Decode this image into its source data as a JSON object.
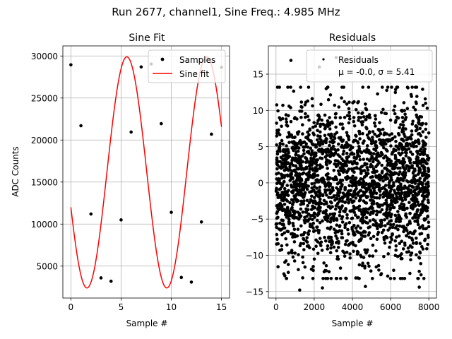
{
  "suptitle": "Run 2677, channel1, Sine Freq.: 4.985 MHz",
  "colors": {
    "sine": "#ff0000",
    "points": "#000000",
    "grid": "#b0b0b0"
  },
  "chart_data": [
    {
      "type": "line",
      "title": "Sine Fit",
      "xlabel": "Sample #",
      "ylabel": "ADC Counts",
      "xlim": [
        -0.8,
        15.8
      ],
      "ylim": [
        1200,
        31200
      ],
      "xticks": [
        0,
        5,
        10,
        15
      ],
      "yticks": [
        5000,
        10000,
        15000,
        20000,
        25000,
        30000
      ],
      "grid": true,
      "legend_position": "top-right",
      "series": [
        {
          "name": "Samples",
          "style": "markers",
          "x": [
            0,
            1,
            2,
            3,
            4,
            5,
            6,
            7,
            8,
            9,
            10,
            11,
            12,
            13,
            14,
            15
          ],
          "y": [
            28950,
            21700,
            11200,
            3600,
            3200,
            10500,
            20950,
            28700,
            29050,
            21950,
            11400,
            3650,
            3100,
            10250,
            20700,
            28650
          ]
        },
        {
          "name": "Sine fit",
          "style": "line",
          "model": {
            "offset": 16150,
            "amplitude": 13750,
            "period": 7.95,
            "phase_shift": 1.6
          }
        }
      ]
    },
    {
      "type": "scatter",
      "title": "Residuals",
      "xlabel": "Sample #",
      "xlim": [
        -400,
        8400
      ],
      "ylim": [
        -15.9,
        18.9
      ],
      "xticks": [
        0,
        2000,
        4000,
        6000,
        8000
      ],
      "yticks": [
        -15,
        -10,
        -5,
        0,
        5,
        10,
        15
      ],
      "grid": true,
      "legend_position": "top-right",
      "legend_label": "Residuals",
      "legend_stats": "μ = -0.0, σ = 5.41",
      "n_samples": 8000,
      "mean": 0.0,
      "sigma": 5.41,
      "highlighted_points": [
        [
          780,
          16.9
        ],
        [
          2270,
          16.0
        ],
        [
          3150,
          17.3
        ],
        [
          1240,
          -14.8
        ],
        [
          2430,
          -14.5
        ],
        [
          4680,
          -14.3
        ],
        [
          7500,
          -14.4
        ]
      ]
    }
  ]
}
